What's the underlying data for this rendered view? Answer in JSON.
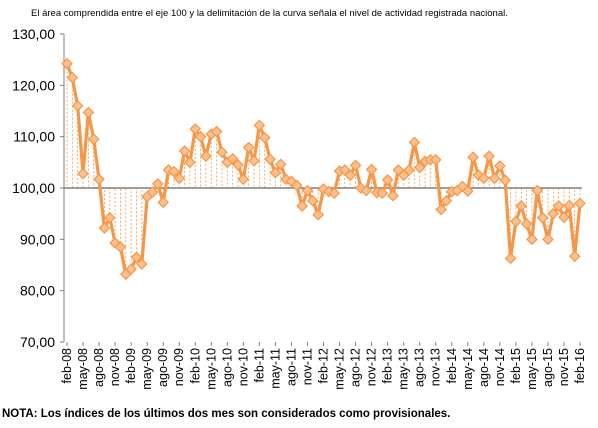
{
  "subtitle": "El área comprendida entre el eje 100 y la delimitación de la curva señala el nivel de actividad registrada nacional.",
  "note": "NOTA: Los índices de los últimos dos mes son considerados como provisionales.",
  "chart_data": {
    "type": "line",
    "title": "",
    "subtitle": "El área comprendida entre el eje 100 y la delimitación de la curva señala el nivel de actividad registrada nacional.",
    "xlabel": "",
    "ylabel": "",
    "ylim": [
      70,
      130
    ],
    "yticks": [
      "70,00",
      "80,00",
      "90,00",
      "100,00",
      "110,00",
      "120,00",
      "130,00"
    ],
    "baseline": 100,
    "grid": false,
    "legend": "none",
    "line_color": "#F79646",
    "marker_fill": "#FAC090",
    "drop_line_color": "#F79646",
    "baseline_color": "#7F7F7F",
    "x_tick_labels": [
      "feb-08",
      "may-08",
      "ago-08",
      "nov-08",
      "feb-09",
      "may-09",
      "ago-09",
      "nov-09",
      "feb-10",
      "may-10",
      "ago-10",
      "nov-10",
      "feb-11",
      "may-11",
      "ago-11",
      "nov-11",
      "feb-12",
      "may-12",
      "ago-12",
      "nov-12",
      "feb-13",
      "may-13",
      "ago-13",
      "nov-13",
      "feb-14",
      "may-14",
      "ago-14",
      "nov-14",
      "feb-15",
      "may-15",
      "ago-15",
      "nov-15",
      "feb-16"
    ],
    "x": [
      "feb-08",
      "mar-08",
      "abr-08",
      "may-08",
      "jun-08",
      "jul-08",
      "ago-08",
      "sep-08",
      "oct-08",
      "nov-08",
      "dic-08",
      "ene-09",
      "feb-09",
      "mar-09",
      "abr-09",
      "may-09",
      "jun-09",
      "jul-09",
      "ago-09",
      "sep-09",
      "oct-09",
      "nov-09",
      "dic-09",
      "ene-10",
      "feb-10",
      "mar-10",
      "abr-10",
      "may-10",
      "jun-10",
      "jul-10",
      "ago-10",
      "sep-10",
      "oct-10",
      "nov-10",
      "dic-10",
      "ene-11",
      "feb-11",
      "mar-11",
      "abr-11",
      "may-11",
      "jun-11",
      "jul-11",
      "ago-11",
      "sep-11",
      "oct-11",
      "nov-11",
      "dic-11",
      "ene-12",
      "feb-12",
      "mar-12",
      "abr-12",
      "may-12",
      "jun-12",
      "jul-12",
      "ago-12",
      "sep-12",
      "oct-12",
      "nov-12",
      "dic-12",
      "ene-13",
      "feb-13",
      "mar-13",
      "abr-13",
      "may-13",
      "jun-13",
      "jul-13",
      "ago-13",
      "sep-13",
      "oct-13",
      "nov-13",
      "dic-13",
      "ene-14",
      "feb-14",
      "mar-14",
      "abr-14",
      "may-14",
      "jun-14",
      "jul-14",
      "ago-14",
      "sep-14",
      "oct-14",
      "nov-14",
      "dic-14",
      "ene-15",
      "feb-15",
      "mar-15",
      "abr-15",
      "may-15",
      "jun-15",
      "jul-15",
      "ago-15",
      "sep-15",
      "oct-15",
      "nov-15",
      "dic-15",
      "ene-16",
      "feb-16"
    ],
    "values": [
      124.2,
      121.5,
      116.0,
      102.8,
      114.7,
      109.5,
      101.7,
      92.2,
      94.2,
      89.3,
      88.5,
      83.2,
      84.2,
      86.5,
      85.2,
      98.3,
      99.2,
      100.8,
      97.2,
      103.5,
      103.2,
      101.9,
      107.2,
      105.0,
      111.5,
      110.0,
      106.2,
      110.5,
      111.0,
      107.0,
      105.0,
      105.7,
      104.5,
      101.7,
      107.9,
      105.3,
      112.2,
      109.8,
      105.6,
      103.0,
      104.6,
      101.7,
      101.3,
      100.5,
      96.5,
      99.5,
      97.5,
      94.8,
      99.8,
      99.3,
      99.0,
      103.3,
      103.5,
      102.5,
      104.4,
      100.0,
      99.5,
      103.6,
      99.1,
      99.0,
      101.6,
      98.5,
      103.5,
      102.5,
      103.5,
      108.9,
      104.0,
      105.2,
      105.5,
      105.5,
      95.8,
      97.5,
      99.3,
      99.5,
      100.3,
      99.4,
      106.0,
      102.5,
      101.9,
      106.2,
      101.9,
      104.3,
      101.5,
      86.3,
      93.5,
      96.5,
      93.0,
      90.0,
      99.5,
      94.2,
      90.0,
      95.0,
      96.5,
      94.3,
      96.6,
      86.7,
      97.0
    ]
  }
}
